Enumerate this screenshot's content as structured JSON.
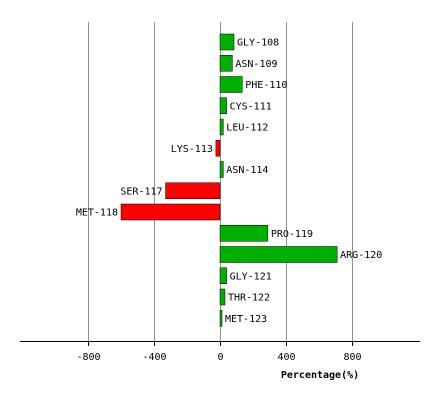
{
  "chart_data": {
    "type": "bar",
    "orientation": "horizontal",
    "xlabel": "Percentage(%)",
    "xlim": [
      -1200,
      1200
    ],
    "xticks": [
      -800,
      -400,
      0,
      400,
      800
    ],
    "xtick_labels": [
      "-800",
      "-400",
      "0",
      "400",
      "800"
    ],
    "grid": true,
    "legend": "none",
    "categories": [
      "GLY-108",
      "ASN-109",
      "PHE-110",
      "CYS-111",
      "LEU-112",
      "LYS-113",
      "ASN-114",
      "SER-117",
      "MET-118",
      "PRO-119",
      "ARG-120",
      "GLY-121",
      "THR-122",
      "MET-123"
    ],
    "values": [
      85,
      75,
      135,
      40,
      20,
      -25,
      20,
      -330,
      -600,
      290,
      710,
      40,
      30,
      10
    ],
    "colors": {
      "positive": "#00b000",
      "negative": "#ff0000",
      "grid": "#909090",
      "axis": "#000000"
    }
  }
}
